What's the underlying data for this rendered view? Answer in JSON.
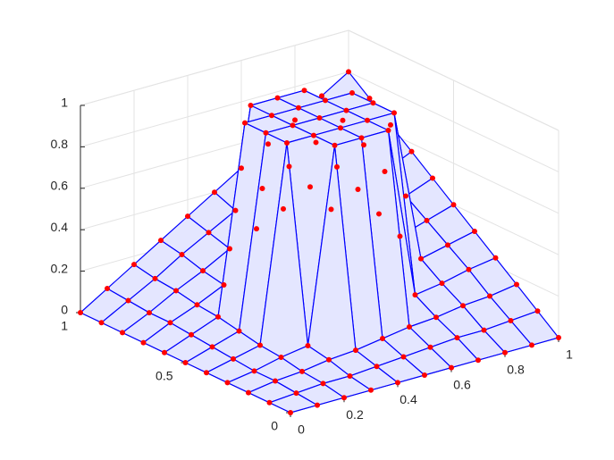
{
  "chart_data": {
    "type": "surface",
    "x": [
      0,
      0.1,
      0.2,
      0.3,
      0.4,
      0.5,
      0.6,
      0.7,
      0.8,
      0.9,
      1
    ],
    "y": [
      0,
      0.1,
      0.2,
      0.3,
      0.4,
      0.5,
      0.6,
      0.7,
      0.8,
      0.9,
      1
    ],
    "z": [
      [
        0,
        0,
        0,
        0,
        0,
        0,
        0,
        0,
        0,
        0,
        0
      ],
      [
        0,
        0.01,
        0.02,
        0.02,
        0.03,
        0.04,
        0.05,
        0.06,
        0.06,
        0.07,
        0.08
      ],
      [
        0,
        0.02,
        0.03,
        0.05,
        0.06,
        0.08,
        0.1,
        0.11,
        0.13,
        0.14,
        0.16
      ],
      [
        0,
        0.02,
        0.05,
        0.07,
        1,
        1,
        1,
        0.17,
        0.19,
        0.22,
        0.24
      ],
      [
        0,
        0.03,
        0.06,
        1,
        1,
        1,
        1,
        1,
        0.26,
        0.29,
        0.32
      ],
      [
        0,
        0.04,
        0.08,
        1,
        1,
        1,
        1,
        1,
        0.32,
        0.36,
        0.4
      ],
      [
        0,
        0.05,
        0.1,
        1,
        1,
        1,
        1,
        1,
        0.38,
        0.43,
        0.48
      ],
      [
        0,
        0.06,
        0.11,
        0.17,
        1,
        1,
        1,
        0.39,
        0.45,
        0.5,
        0.56
      ],
      [
        0,
        0.06,
        0.13,
        0.19,
        0.26,
        0.32,
        0.38,
        0.45,
        0.51,
        0.58,
        0.64
      ],
      [
        0,
        0.07,
        0.14,
        0.22,
        0.29,
        0.36,
        0.43,
        0.5,
        0.58,
        0.65,
        0.72
      ],
      [
        0,
        0.08,
        0.16,
        0.24,
        0.32,
        0.4,
        0.48,
        0.56,
        0.64,
        0.72,
        0.8
      ]
    ],
    "edge_color": "#0000ff",
    "face_color": "#e4e6ff",
    "marker_color": "#ff0000",
    "xlim": [
      0,
      1
    ],
    "ylim": [
      0,
      1
    ],
    "zlim": [
      0,
      1
    ],
    "xticks": [
      0,
      0.2,
      0.4,
      0.6,
      0.8,
      1
    ],
    "yticks": [
      0,
      0.5,
      1
    ],
    "zticks": [
      0,
      0.2,
      0.4,
      0.6,
      0.8,
      1
    ],
    "grid": true
  }
}
